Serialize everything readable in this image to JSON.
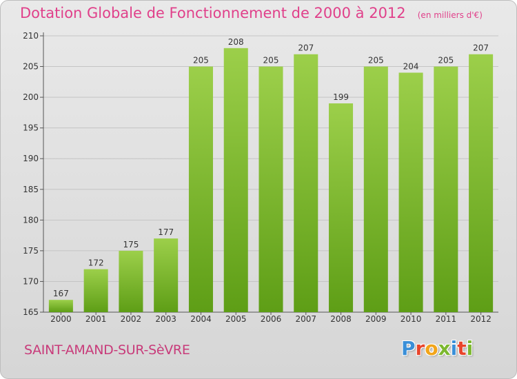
{
  "header": {
    "title": "Dotation Globale de Fonctionnement de 2000 à 2012",
    "subtitle": "(en milliers d'€)"
  },
  "footer": {
    "commune": "SAINT-AMAND-SUR-SèVRE",
    "logo_text": "Proxiti",
    "logo_colors": [
      "#3a8fd8",
      "#e8452c",
      "#f2a51a",
      "#7cb82f",
      "#3a8fd8",
      "#e8452c",
      "#7cb82f"
    ]
  },
  "chart_data": {
    "type": "bar",
    "categories": [
      "2000",
      "2001",
      "2002",
      "2003",
      "2004",
      "2005",
      "2006",
      "2007",
      "2008",
      "2009",
      "2010",
      "2011",
      "2012"
    ],
    "values": [
      167,
      172,
      175,
      177,
      205,
      208,
      205,
      207,
      199,
      205,
      204,
      205,
      207
    ],
    "data_labels": [
      "167",
      "172",
      "175",
      "177",
      "205",
      "208",
      "205",
      "207",
      "199",
      "205",
      "204",
      "205",
      "207"
    ],
    "ylim": [
      165,
      210
    ],
    "yticks": [
      165,
      170,
      175,
      180,
      185,
      190,
      195,
      200,
      205,
      210
    ],
    "grid": true,
    "bar_color_top": "#9ccf4a",
    "bar_color_bottom": "#5e9e16"
  }
}
